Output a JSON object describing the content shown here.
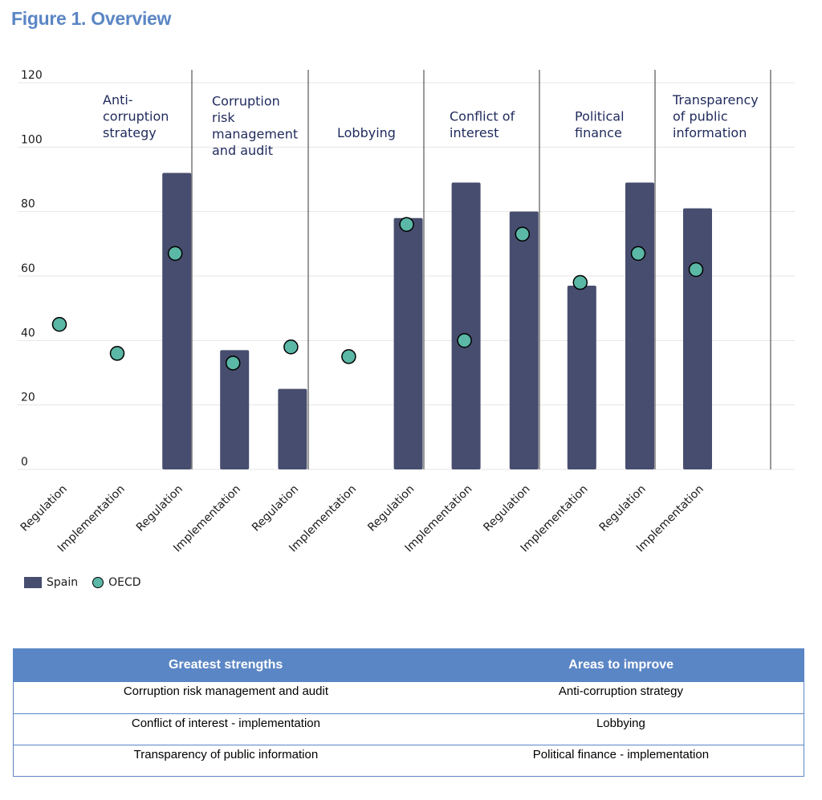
{
  "figure_title": "Figure 1. Overview",
  "legend": {
    "bar_label": "Spain",
    "dot_label": "OECD"
  },
  "colors": {
    "bar": "#474d6e",
    "dot": "#5bb7a6",
    "title": "#5b86c5",
    "category_text": "#1f2a5c"
  },
  "chart_data": {
    "type": "bar",
    "groups": [
      {
        "label": "Anti-\ncorruption\nstrategy"
      },
      {
        "label": "Corruption\nrisk\nmanagement\nand audit"
      },
      {
        "label": "Lobbying"
      },
      {
        "label": "Conflict of\ninterest"
      },
      {
        "label": "Political\nfinance"
      },
      {
        "label": "Transparency\nof public\ninformation"
      }
    ],
    "categories": [
      "Regulation",
      "Implementation",
      "Regulation",
      "Implementation",
      "Regulation",
      "Implementation",
      "Regulation",
      "Implementation",
      "Regulation",
      "Implementation",
      "Regulation",
      "Implementation"
    ],
    "series": [
      {
        "name": "Spain",
        "kind": "bar",
        "values": [
          null,
          null,
          92,
          37,
          25,
          0,
          78,
          89,
          80,
          57,
          89,
          81
        ]
      },
      {
        "name": "OECD",
        "kind": "dot",
        "values": [
          45,
          36,
          67,
          33,
          38,
          35,
          76,
          40,
          73,
          58,
          67,
          62
        ]
      }
    ],
    "yticks": [
      0,
      20,
      40,
      60,
      80,
      100,
      120
    ],
    "ylim": [
      0,
      120
    ],
    "grid": true,
    "legend_position": "bottom-left"
  },
  "table": {
    "headers": [
      "Greatest strengths",
      "Areas to improve"
    ],
    "rows": [
      [
        "Corruption risk management and audit",
        "Anti-corruption strategy"
      ],
      [
        "Conflict of interest - implementation",
        "Lobbying"
      ],
      [
        "Transparency of public information",
        "Political finance - implementation"
      ]
    ]
  }
}
